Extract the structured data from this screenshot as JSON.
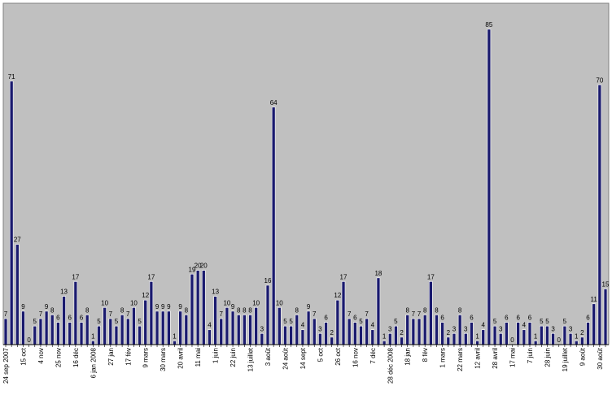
{
  "chart_data": {
    "type": "bar",
    "title": "",
    "xlabel": "",
    "ylabel": "",
    "ylim": [
      0,
      92
    ],
    "grid": false,
    "legend": "none",
    "colors": {
      "plot_bg": "#c0c0c0",
      "bar_fill": "#1a1a6e",
      "bar_stroke": "#ffffff",
      "outer_bg": "#ffffff"
    },
    "values": [
      7,
      71,
      27,
      9,
      0,
      5,
      7,
      9,
      8,
      6,
      13,
      6,
      17,
      6,
      8,
      1,
      5,
      10,
      7,
      5,
      8,
      7,
      10,
      5,
      12,
      17,
      9,
      9,
      9,
      1,
      9,
      8,
      19,
      20,
      20,
      4,
      13,
      7,
      10,
      9,
      8,
      8,
      8,
      10,
      3,
      16,
      64,
      10,
      5,
      5,
      8,
      4,
      9,
      7,
      3,
      6,
      2,
      12,
      17,
      7,
      6,
      5,
      7,
      4,
      18,
      1,
      3,
      5,
      2,
      8,
      7,
      7,
      8,
      17,
      8,
      6,
      2,
      3,
      8,
      3,
      6,
      1,
      4,
      85,
      5,
      3,
      6,
      0,
      6,
      4,
      6,
      1,
      5,
      5,
      3,
      0,
      5,
      3,
      1,
      2,
      6,
      11,
      70,
      15
    ],
    "tick_labels": [
      {
        "i": 0,
        "text": "24 sep 2007"
      },
      {
        "i": 3,
        "text": "15 oct"
      },
      {
        "i": 6,
        "text": "4 nov"
      },
      {
        "i": 9,
        "text": "25 nov"
      },
      {
        "i": 12,
        "text": "16 déc"
      },
      {
        "i": 15,
        "text": "6 jan 2008"
      },
      {
        "i": 18,
        "text": "27 jan"
      },
      {
        "i": 21,
        "text": "17 fév"
      },
      {
        "i": 24,
        "text": "9 mars"
      },
      {
        "i": 27,
        "text": "30 mars"
      },
      {
        "i": 30,
        "text": "20 avril"
      },
      {
        "i": 33,
        "text": "11 mai"
      },
      {
        "i": 36,
        "text": "1 juin"
      },
      {
        "i": 39,
        "text": "22 juin"
      },
      {
        "i": 42,
        "text": "13 juillet"
      },
      {
        "i": 45,
        "text": "3 août"
      },
      {
        "i": 48,
        "text": "24 août"
      },
      {
        "i": 51,
        "text": "14 sept"
      },
      {
        "i": 54,
        "text": "5 oct"
      },
      {
        "i": 57,
        "text": "26 oct"
      },
      {
        "i": 60,
        "text": "16 nov"
      },
      {
        "i": 63,
        "text": "7 déc"
      },
      {
        "i": 66,
        "text": "28 déc 2008"
      },
      {
        "i": 69,
        "text": "18 jan"
      },
      {
        "i": 72,
        "text": "8 fév"
      },
      {
        "i": 75,
        "text": "1 mars"
      },
      {
        "i": 78,
        "text": "22 mars"
      },
      {
        "i": 81,
        "text": "12 avril"
      },
      {
        "i": 84,
        "text": "28 avril"
      },
      {
        "i": 87,
        "text": "17 mai"
      },
      {
        "i": 90,
        "text": "7 juin"
      },
      {
        "i": 93,
        "text": "28 juin"
      },
      {
        "i": 96,
        "text": "19 juillet"
      },
      {
        "i": 99,
        "text": "9 août"
      },
      {
        "i": 102,
        "text": "30 août"
      }
    ]
  }
}
